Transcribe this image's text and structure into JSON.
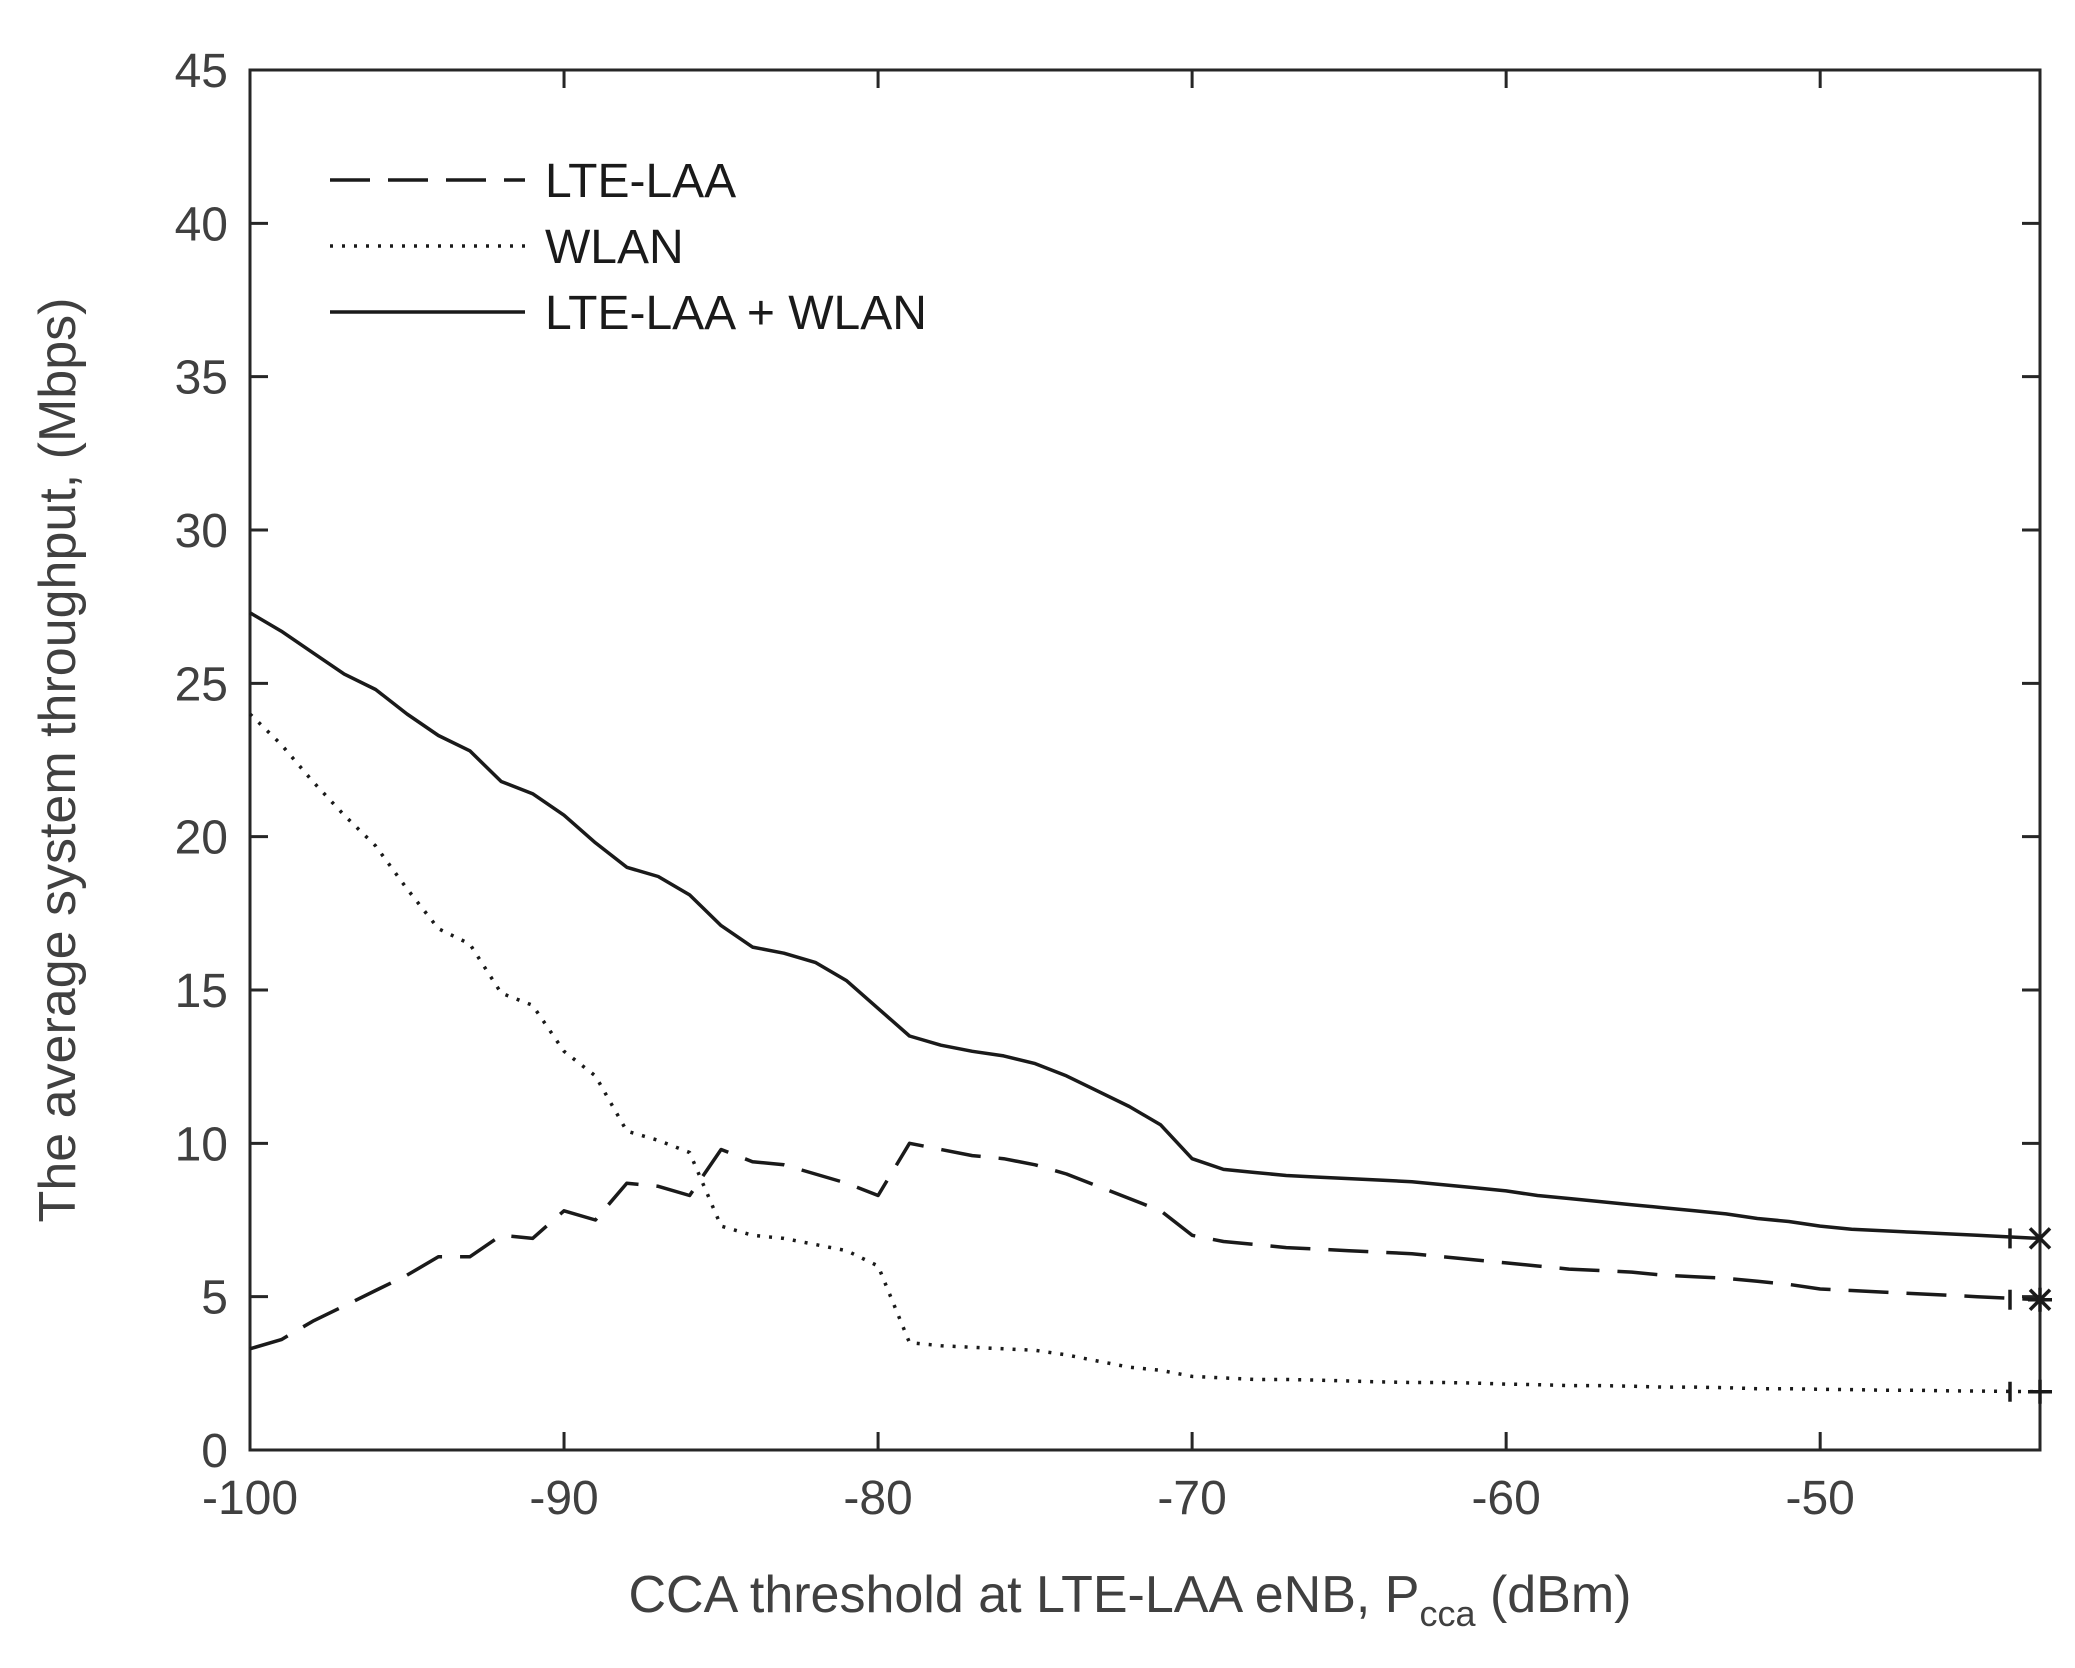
{
  "chart_data": {
    "type": "line",
    "title": "",
    "xlabel_main": "CCA threshold at LTE-LAA eNB, P",
    "xlabel_sub": "cca",
    "xlabel_unit": " (dBm)",
    "ylabel": "The average system throughput, (Mbps)",
    "xlim": [
      -100,
      -43
    ],
    "ylim": [
      0,
      45
    ],
    "xticks": [
      -100,
      -90,
      -80,
      -70,
      -60,
      -50
    ],
    "yticks": [
      0,
      5,
      10,
      15,
      20,
      25,
      30,
      35,
      40,
      45
    ],
    "legend_position": "top-left",
    "grid": false,
    "series": [
      {
        "name": "LTE-LAA",
        "style": "dashed",
        "end_marker": "*",
        "x": [
          -100,
          -99,
          -98,
          -97,
          -96,
          -95,
          -94,
          -93,
          -92,
          -91,
          -90,
          -89,
          -88,
          -87,
          -86,
          -85,
          -84,
          -83,
          -82,
          -81,
          -80,
          -79,
          -78,
          -77,
          -76,
          -75,
          -74,
          -73,
          -72,
          -71,
          -70,
          -69,
          -68,
          -67,
          -66,
          -65,
          -64,
          -63,
          -62,
          -61,
          -60,
          -59,
          -58,
          -57,
          -56,
          -55,
          -54,
          -53,
          -52,
          -51,
          -50,
          -49,
          -48,
          -47,
          -46,
          -45,
          -44,
          -43
        ],
        "y": [
          3.3,
          3.6,
          4.2,
          4.7,
          5.2,
          5.7,
          6.3,
          6.3,
          7.0,
          6.9,
          7.8,
          7.5,
          8.7,
          8.6,
          8.3,
          9.8,
          9.4,
          9.3,
          9.0,
          8.7,
          8.3,
          10.0,
          9.8,
          9.6,
          9.5,
          9.3,
          9.0,
          8.6,
          8.2,
          7.8,
          7.0,
          6.8,
          6.7,
          6.6,
          6.55,
          6.5,
          6.45,
          6.4,
          6.3,
          6.2,
          6.1,
          6.0,
          5.9,
          5.85,
          5.8,
          5.7,
          5.65,
          5.6,
          5.5,
          5.4,
          5.25,
          5.2,
          5.15,
          5.1,
          5.05,
          5.0,
          4.95,
          4.9
        ]
      },
      {
        "name": "WLAN",
        "style": "dotted",
        "end_marker": "+",
        "x": [
          -100,
          -99,
          -98,
          -97,
          -96,
          -95,
          -94,
          -93,
          -92,
          -91,
          -90,
          -89,
          -88,
          -87,
          -86,
          -85,
          -84,
          -83,
          -82,
          -81,
          -80,
          -79,
          -78,
          -77,
          -76,
          -75,
          -74,
          -73,
          -72,
          -71,
          -70,
          -69,
          -68,
          -67,
          -66,
          -65,
          -64,
          -63,
          -62,
          -61,
          -60,
          -59,
          -58,
          -57,
          -56,
          -55,
          -54,
          -53,
          -52,
          -51,
          -50,
          -49,
          -48,
          -47,
          -46,
          -45,
          -44,
          -43
        ],
        "y": [
          24.0,
          23.0,
          21.8,
          20.7,
          19.7,
          18.3,
          17.0,
          16.5,
          14.9,
          14.5,
          13.0,
          12.2,
          10.4,
          10.1,
          9.7,
          7.3,
          7.0,
          6.9,
          6.7,
          6.5,
          6.0,
          3.5,
          3.4,
          3.35,
          3.3,
          3.25,
          3.1,
          2.9,
          2.7,
          2.6,
          2.4,
          2.35,
          2.3,
          2.3,
          2.28,
          2.25,
          2.22,
          2.2,
          2.2,
          2.18,
          2.15,
          2.13,
          2.1,
          2.1,
          2.08,
          2.05,
          2.05,
          2.03,
          2.0,
          2.0,
          1.98,
          1.97,
          1.95,
          1.95,
          1.93,
          1.92,
          1.91,
          1.9
        ]
      },
      {
        "name": "LTE-LAA + WLAN",
        "style": "solid",
        "end_marker": "x",
        "x": [
          -100,
          -99,
          -98,
          -97,
          -96,
          -95,
          -94,
          -93,
          -92,
          -91,
          -90,
          -89,
          -88,
          -87,
          -86,
          -85,
          -84,
          -83,
          -82,
          -81,
          -80,
          -79,
          -78,
          -77,
          -76,
          -75,
          -74,
          -73,
          -72,
          -71,
          -70,
          -69,
          -68,
          -67,
          -66,
          -65,
          -64,
          -63,
          -62,
          -61,
          -60,
          -59,
          -58,
          -57,
          -56,
          -55,
          -54,
          -53,
          -52,
          -51,
          -50,
          -49,
          -48,
          -47,
          -46,
          -45,
          -44,
          -43
        ],
        "y": [
          27.3,
          26.7,
          26.0,
          25.3,
          24.8,
          24.0,
          23.3,
          22.8,
          21.8,
          21.4,
          20.7,
          19.8,
          19.0,
          18.7,
          18.1,
          17.1,
          16.4,
          16.2,
          15.9,
          15.3,
          14.4,
          13.5,
          13.2,
          13.0,
          12.85,
          12.6,
          12.2,
          11.7,
          11.2,
          10.6,
          9.5,
          9.15,
          9.05,
          8.95,
          8.9,
          8.85,
          8.8,
          8.75,
          8.65,
          8.55,
          8.45,
          8.3,
          8.2,
          8.1,
          8.0,
          7.9,
          7.8,
          7.7,
          7.55,
          7.45,
          7.3,
          7.2,
          7.15,
          7.1,
          7.05,
          7.0,
          6.95,
          6.9
        ]
      }
    ]
  }
}
